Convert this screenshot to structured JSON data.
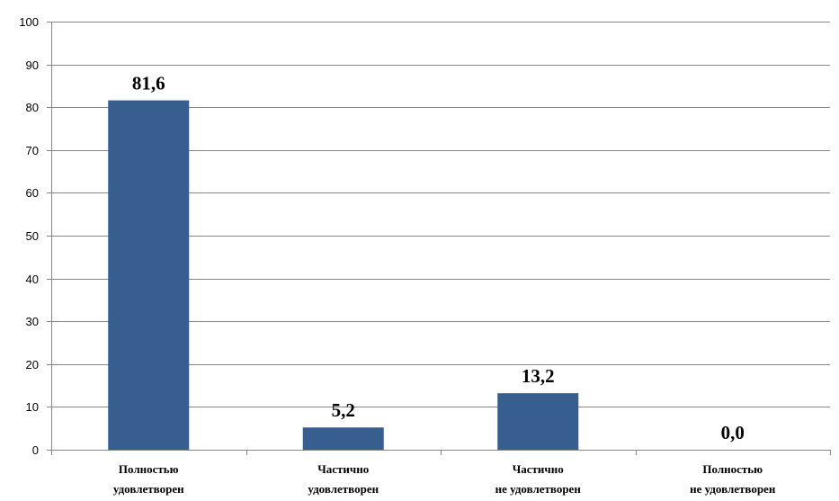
{
  "chart_data": {
    "type": "bar",
    "title": "",
    "xlabel": "",
    "ylabel": "",
    "ylim": [
      0,
      100
    ],
    "yticks": [
      0,
      10,
      20,
      30,
      40,
      50,
      60,
      70,
      80,
      90,
      100
    ],
    "grid": true,
    "legend": "none",
    "bar_color": "#375E8F",
    "categories": [
      [
        "Полностью",
        "удовлетворен"
      ],
      [
        "Частично",
        "удовлетворен"
      ],
      [
        "Частично",
        "не удовлетворен"
      ],
      [
        "Полностью",
        "не удовлетворен"
      ]
    ],
    "values": [
      81.6,
      5.2,
      13.2,
      0.0
    ],
    "data_labels": [
      "81,6",
      "5,2",
      "13,2",
      "0,0"
    ]
  }
}
